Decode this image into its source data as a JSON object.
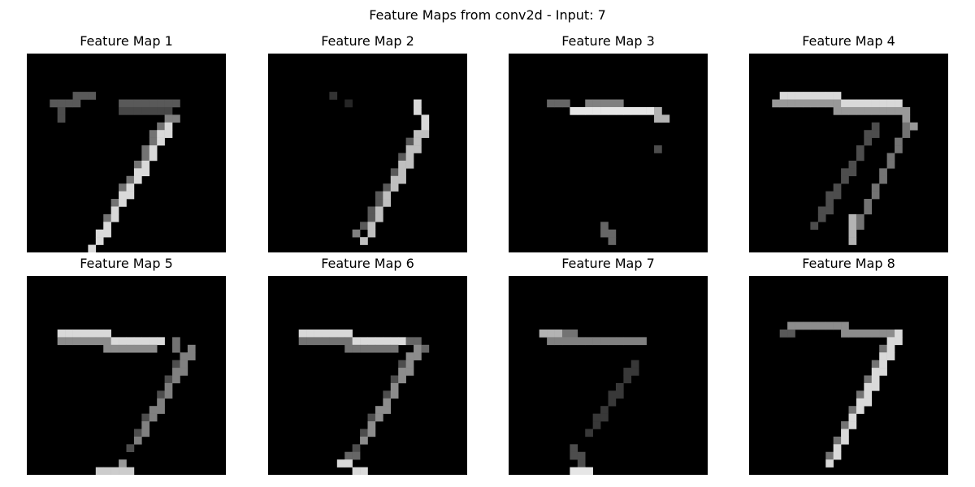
{
  "figure": {
    "title": "Feature Maps from conv2d - Input: 7"
  },
  "chart_data": {
    "type": "heatmap",
    "colormap": "gray",
    "grid": false,
    "axes_visible": false,
    "map_size": [
      26,
      26
    ],
    "panels": [
      {
        "title": "Feature Map 1",
        "strokes": [
          {
            "from": [
              3,
              6
            ],
            "to": [
              8,
              5
            ],
            "v": 0.35
          },
          {
            "from": [
              4,
              6
            ],
            "to": [
              4,
              8
            ],
            "v": 0.3
          },
          {
            "from": [
              12,
              6
            ],
            "to": [
              19,
              6
            ],
            "v": 0.35
          },
          {
            "from": [
              12,
              7
            ],
            "to": [
              18,
              7
            ],
            "v": 0.28
          },
          {
            "from": [
              18,
              9
            ],
            "to": [
              8,
              25
            ],
            "v": 0.85
          },
          {
            "from": [
              17,
              9
            ],
            "to": [
              9,
              23
            ],
            "v": 0.45
          },
          {
            "from": [
              18,
              8
            ],
            "to": [
              19,
              8
            ],
            "v": 0.5
          }
        ]
      },
      {
        "title": "Feature Map 2",
        "strokes": [
          {
            "from": [
              8,
              5
            ],
            "to": [
              8,
              5
            ],
            "v": 0.2
          },
          {
            "from": [
              10,
              6
            ],
            "to": [
              10,
              6
            ],
            "v": 0.15
          },
          {
            "from": [
              19,
              6
            ],
            "to": [
              20,
              9
            ],
            "v": 0.85
          },
          {
            "from": [
              20,
              9
            ],
            "to": [
              12,
              24
            ],
            "v": 0.75
          },
          {
            "from": [
              19,
              10
            ],
            "to": [
              12,
              22
            ],
            "v": 0.35
          },
          {
            "from": [
              11,
              23
            ],
            "to": [
              12,
              24
            ],
            "v": 0.5
          }
        ]
      },
      {
        "title": "Feature Map 3",
        "strokes": [
          {
            "from": [
              5,
              6
            ],
            "to": [
              7,
              6
            ],
            "v": 0.4
          },
          {
            "from": [
              8,
              7
            ],
            "to": [
              18,
              7
            ],
            "v": 0.9
          },
          {
            "from": [
              10,
              6
            ],
            "to": [
              18,
              7
            ],
            "v": 0.5
          },
          {
            "from": [
              18,
              7
            ],
            "to": [
              20,
              8
            ],
            "v": 0.7
          },
          {
            "from": [
              19,
              12
            ],
            "to": [
              19,
              12
            ],
            "v": 0.3
          },
          {
            "from": [
              12,
              22
            ],
            "to": [
              13,
              24
            ],
            "v": 0.4
          }
        ]
      },
      {
        "title": "Feature Map 4",
        "strokes": [
          {
            "from": [
              4,
              5
            ],
            "to": [
              19,
              6
            ],
            "v": 0.85
          },
          {
            "from": [
              3,
              6
            ],
            "to": [
              19,
              7
            ],
            "v": 0.6
          },
          {
            "from": [
              19,
              6
            ],
            "to": [
              21,
              9
            ],
            "v": 0.6
          },
          {
            "from": [
              20,
              9
            ],
            "to": [
              13,
              23
            ],
            "v": 0.45
          },
          {
            "from": [
              16,
              9
            ],
            "to": [
              8,
              22
            ],
            "v": 0.3
          },
          {
            "from": [
              13,
              21
            ],
            "to": [
              13,
              24
            ],
            "v": 0.7
          }
        ]
      },
      {
        "title": "Feature Map 5",
        "strokes": [
          {
            "from": [
              4,
              7
            ],
            "to": [
              17,
              8
            ],
            "v": 0.85
          },
          {
            "from": [
              4,
              8
            ],
            "to": [
              16,
              9
            ],
            "v": 0.55
          },
          {
            "from": [
              19,
              8
            ],
            "to": [
              19,
              9
            ],
            "v": 0.45
          },
          {
            "from": [
              21,
              9
            ],
            "to": [
              14,
              21
            ],
            "v": 0.5
          },
          {
            "from": [
              20,
              10
            ],
            "to": [
              13,
              22
            ],
            "v": 0.3
          },
          {
            "from": [
              9,
              25
            ],
            "to": [
              13,
              25
            ],
            "v": 0.8
          },
          {
            "from": [
              12,
              24
            ],
            "to": [
              13,
              25
            ],
            "v": 0.6
          }
        ]
      },
      {
        "title": "Feature Map 6",
        "strokes": [
          {
            "from": [
              4,
              7
            ],
            "to": [
              17,
              8
            ],
            "v": 0.85
          },
          {
            "from": [
              4,
              8
            ],
            "to": [
              16,
              9
            ],
            "v": 0.45
          },
          {
            "from": [
              18,
              8
            ],
            "to": [
              20,
              9
            ],
            "v": 0.4
          },
          {
            "from": [
              19,
              9
            ],
            "to": [
              12,
              21
            ],
            "v": 0.55
          },
          {
            "from": [
              18,
              10
            ],
            "to": [
              11,
              22
            ],
            "v": 0.3
          },
          {
            "from": [
              9,
              24
            ],
            "to": [
              12,
              25
            ],
            "v": 0.85
          },
          {
            "from": [
              10,
              23
            ],
            "to": [
              11,
              23
            ],
            "v": 0.4
          }
        ]
      },
      {
        "title": "Feature Map 7",
        "strokes": [
          {
            "from": [
              4,
              7
            ],
            "to": [
              6,
              7
            ],
            "v": 0.7
          },
          {
            "from": [
              5,
              8
            ],
            "to": [
              17,
              8
            ],
            "v": 0.5
          },
          {
            "from": [
              7,
              7
            ],
            "to": [
              9,
              8
            ],
            "v": 0.45
          },
          {
            "from": [
              16,
              11
            ],
            "to": [
              10,
              20
            ],
            "v": 0.22
          },
          {
            "from": [
              8,
              22
            ],
            "to": [
              9,
              24
            ],
            "v": 0.3
          },
          {
            "from": [
              8,
              25
            ],
            "to": [
              10,
              25
            ],
            "v": 0.9
          }
        ]
      },
      {
        "title": "Feature Map 8",
        "strokes": [
          {
            "from": [
              5,
              6
            ],
            "to": [
              19,
              7
            ],
            "v": 0.55
          },
          {
            "from": [
              19,
              7
            ],
            "to": [
              10,
              24
            ],
            "v": 0.85
          },
          {
            "from": [
              18,
              8
            ],
            "to": [
              10,
              23
            ],
            "v": 0.45
          },
          {
            "from": [
              4,
              7
            ],
            "to": [
              5,
              7
            ],
            "v": 0.35
          }
        ]
      }
    ]
  }
}
